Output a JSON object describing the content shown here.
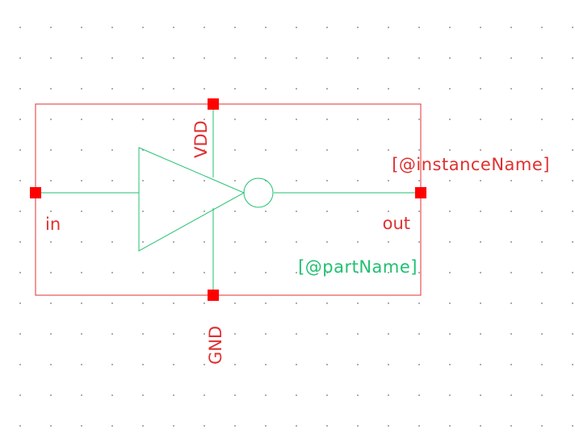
{
  "symbol": {
    "instance_name_label": "[@instanceName]",
    "part_name_label": "[@partName]"
  },
  "pins": {
    "in": "in",
    "out": "out",
    "vdd": "VDD",
    "gnd": "GND"
  },
  "colors": {
    "background": "#ffffff",
    "grid_dot": "#9a9a9a",
    "symbol_outline": "#e03030",
    "pin_marker": "#ff0000",
    "device": "#20c070",
    "pin_label": "#e03030",
    "part_label": "#20c070"
  }
}
